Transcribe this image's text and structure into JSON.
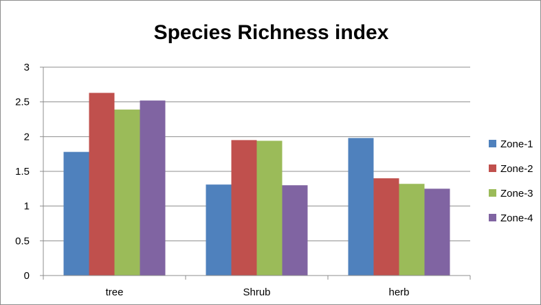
{
  "chart_data": {
    "type": "bar",
    "title": "Species Richness index",
    "xlabel": "",
    "ylabel": "",
    "categories": [
      "tree",
      "Shrub",
      "herb"
    ],
    "ylim": [
      0,
      3
    ],
    "yticks": [
      "0",
      "0.5",
      "1",
      "1.5",
      "2",
      "2.5",
      "3"
    ],
    "grid": true,
    "legend_position": "right",
    "series": [
      {
        "name": "Zone-1",
        "color": "#4f81bd",
        "values": [
          1.78,
          1.31,
          1.98
        ]
      },
      {
        "name": "Zone-2",
        "color": "#c0504d",
        "values": [
          2.63,
          1.95,
          1.4
        ]
      },
      {
        "name": "Zone-3",
        "color": "#9bbb59",
        "values": [
          2.39,
          1.94,
          1.32
        ]
      },
      {
        "name": "Zone-4",
        "color": "#8064a2",
        "values": [
          2.52,
          1.3,
          1.25
        ]
      }
    ]
  }
}
